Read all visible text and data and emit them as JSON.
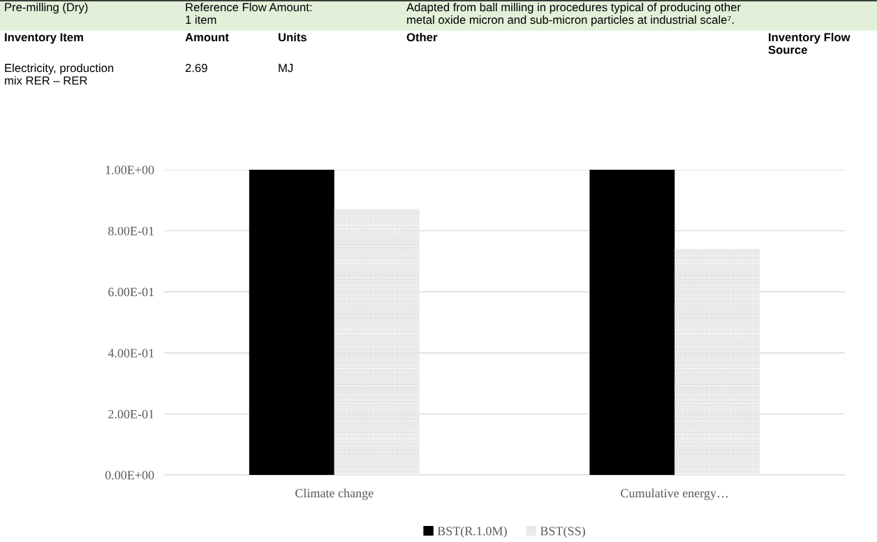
{
  "chart_data": {
    "type": "bar",
    "categories": [
      "Climate change",
      "Cumulative energy…"
    ],
    "series": [
      {
        "name": "BST(R.1.0M)",
        "color": "#000000",
        "values": [
          1.0,
          1.0
        ]
      },
      {
        "name": "BST(SS)",
        "color": "#c8c8c8",
        "values": [
          0.87,
          0.74
        ]
      }
    ],
    "ylim": [
      0,
      1.0
    ],
    "yticks": [
      {
        "value": 0,
        "label": "0.00E+00"
      },
      {
        "value": 0.2,
        "label": "2.00E-01"
      },
      {
        "value": 0.4,
        "label": "4.00E-01"
      },
      {
        "value": 0.6,
        "label": "6.00E-01"
      },
      {
        "value": 0.8,
        "label": "8.00E-01"
      },
      {
        "value": 1.0,
        "label": "1.00E+00"
      }
    ],
    "grid": "y",
    "legend": "bottom",
    "annotations": [
      "Pre-milling (Dry)",
      "Reference Flow Amount:\n1 item",
      "Adapted from ball milling in procedures typical of producing other\nmetal oxide micron and sub-micron particles at industrial scale⁷.",
      "Inventory Item",
      "Amount",
      "Units",
      "Other",
      "Inventory Flow\nSource",
      "Electricity, production\nmix RER – RER",
      "2.69",
      "MJ"
    ]
  }
}
